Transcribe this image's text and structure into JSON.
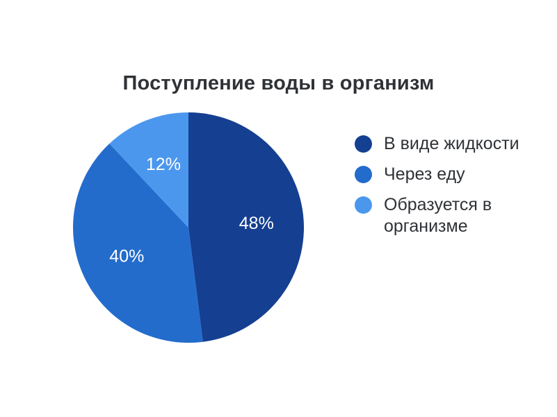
{
  "chart_data": {
    "type": "pie",
    "title": "Поступление воды в организм",
    "slices": [
      {
        "label": "В виде жидкости",
        "value": 48,
        "display": "48%",
        "color": "#153f91"
      },
      {
        "label": "Через еду",
        "value": 40,
        "display": "40%",
        "color": "#236ccc"
      },
      {
        "label": "Образуется в организме",
        "value": 12,
        "display": "12%",
        "color": "#4c97ee"
      }
    ],
    "legend_position": "right"
  }
}
